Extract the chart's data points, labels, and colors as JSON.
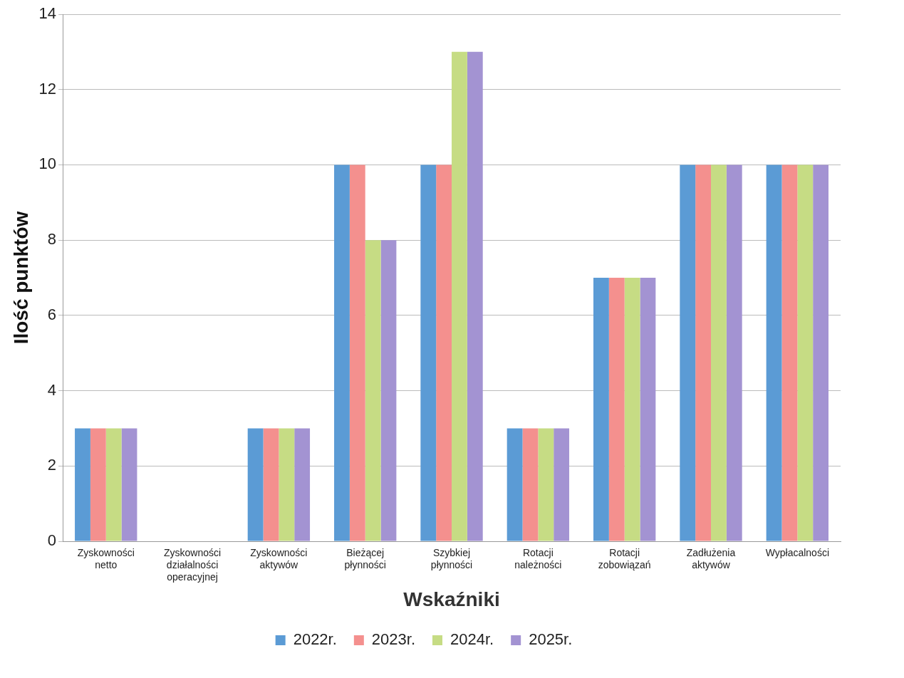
{
  "chart_data": {
    "type": "bar",
    "xlabel": "Wskaźniki",
    "ylabel": "Ilość punktów",
    "categories": [
      "Zyskowności netto",
      "Zyskowności działalności operacyjnej",
      "Zyskowności aktywów",
      "Bieżącej płynności",
      "Szybkiej płynności",
      "Rotacji należności",
      "Rotacji zobowiązań",
      "Zadłużenia aktywów",
      "Wypłacalności"
    ],
    "series": [
      {
        "name": "2022r.",
        "color": "#5b9bd5",
        "values": [
          3,
          0,
          3,
          10,
          10,
          3,
          7,
          10,
          10
        ]
      },
      {
        "name": "2023r.",
        "color": "#f4908e",
        "values": [
          3,
          0,
          3,
          10,
          10,
          3,
          7,
          10,
          10
        ]
      },
      {
        "name": "2024r.",
        "color": "#c6dc84",
        "values": [
          3,
          0,
          3,
          8,
          13,
          3,
          7,
          10,
          10
        ]
      },
      {
        "name": "2025r.",
        "color": "#a393d2",
        "values": [
          3,
          0,
          3,
          8,
          13,
          3,
          7,
          10,
          10
        ]
      }
    ],
    "ylim": [
      0,
      14
    ],
    "yticks": [
      0,
      2,
      4,
      6,
      8,
      10,
      12,
      14
    ],
    "grid": "y",
    "legend": "bottom"
  }
}
